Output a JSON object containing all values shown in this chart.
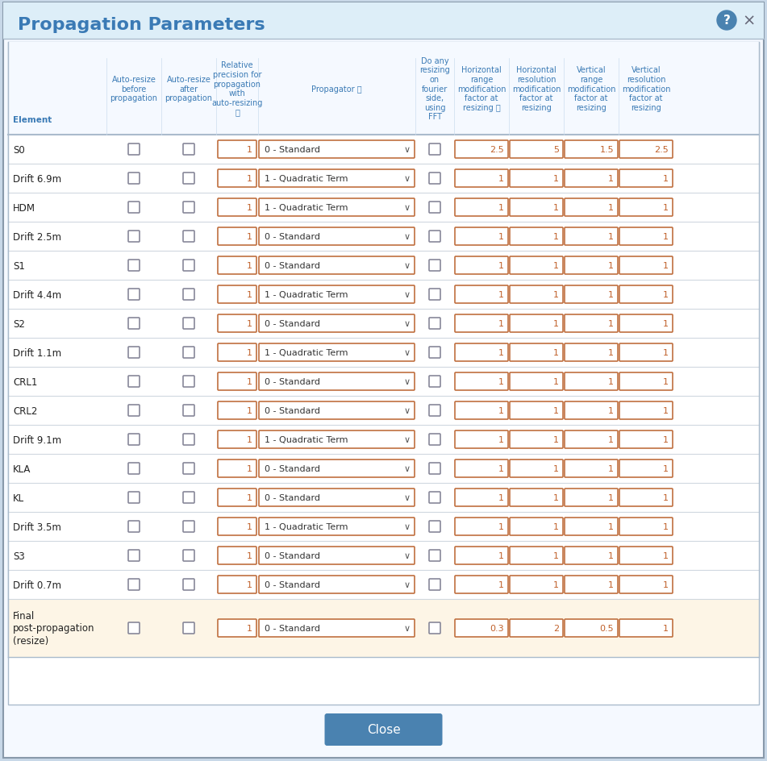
{
  "title": "Propagation Parameters",
  "bg_color": "#f0f8ff",
  "header_bg": "#ddeeff",
  "table_bg": "#ffffff",
  "last_row_bg": "#fdf5e6",
  "border_color": "#aaaaaa",
  "text_color": "#333333",
  "blue_color": "#3a7ab5",
  "orange_color": "#c0602a",
  "header_text_color": "#3a7ab5",
  "row_separator": "#cccccc",
  "input_border": "#c07040",
  "close_btn_color": "#4a82b0",
  "rows": [
    {
      "element": "S0",
      "propagator": "0 - Standard",
      "hr": 2.5,
      "hrm": 5,
      "vr": 1.5,
      "vrm": 2.5
    },
    {
      "element": "Drift 6.9m",
      "propagator": "1 - Quadratic Term",
      "hr": 1,
      "hrm": 1,
      "vr": 1,
      "vrm": 1
    },
    {
      "element": "HDM",
      "propagator": "1 - Quadratic Term",
      "hr": 1,
      "hrm": 1,
      "vr": 1,
      "vrm": 1
    },
    {
      "element": "Drift 2.5m",
      "propagator": "0 - Standard",
      "hr": 1,
      "hrm": 1,
      "vr": 1,
      "vrm": 1
    },
    {
      "element": "S1",
      "propagator": "0 - Standard",
      "hr": 1,
      "hrm": 1,
      "vr": 1,
      "vrm": 1
    },
    {
      "element": "Drift 4.4m",
      "propagator": "1 - Quadratic Term",
      "hr": 1,
      "hrm": 1,
      "vr": 1,
      "vrm": 1
    },
    {
      "element": "S2",
      "propagator": "0 - Standard",
      "hr": 1,
      "hrm": 1,
      "vr": 1,
      "vrm": 1
    },
    {
      "element": "Drift 1.1m",
      "propagator": "1 - Quadratic Term",
      "hr": 1,
      "hrm": 1,
      "vr": 1,
      "vrm": 1
    },
    {
      "element": "CRL1",
      "propagator": "0 - Standard",
      "hr": 1,
      "hrm": 1,
      "vr": 1,
      "vrm": 1
    },
    {
      "element": "CRL2",
      "propagator": "0 - Standard",
      "hr": 1,
      "hrm": 1,
      "vr": 1,
      "vrm": 1
    },
    {
      "element": "Drift 9.1m",
      "propagator": "1 - Quadratic Term",
      "hr": 1,
      "hrm": 1,
      "vr": 1,
      "vrm": 1
    },
    {
      "element": "KLA",
      "propagator": "0 - Standard",
      "hr": 1,
      "hrm": 1,
      "vr": 1,
      "vrm": 1
    },
    {
      "element": "KL",
      "propagator": "0 - Standard",
      "hr": 1,
      "hrm": 1,
      "vr": 1,
      "vrm": 1
    },
    {
      "element": "Drift 3.5m",
      "propagator": "1 - Quadratic Term",
      "hr": 1,
      "hrm": 1,
      "vr": 1,
      "vrm": 1
    },
    {
      "element": "S3",
      "propagator": "0 - Standard",
      "hr": 1,
      "hrm": 1,
      "vr": 1,
      "vrm": 1
    },
    {
      "element": "Drift 0.7m",
      "propagator": "0 - Standard",
      "hr": 1,
      "hrm": 1,
      "vr": 1,
      "vrm": 1
    },
    {
      "element": "Final\npost-propagation\n(resize)",
      "propagator": "0 - Standard",
      "hr": 0.3,
      "hrm": 2,
      "vr": 0.5,
      "vrm": 1
    }
  ],
  "col_headers": [
    "Element",
    "Auto-resize\nbefore\npropagation",
    "Auto-resize\nafter\npropagation",
    "Relative\nprecision for\npropagation\nwith\nauto-resizing\nⓘ",
    "Propagator ⓘ",
    "Do any\nresizing\non\nfourier\nside,\nusing\nFFT",
    "Horizontal\nrange\nmodification\nfactor at\nresizing ⓘ",
    "Horizontal\nresolution\nmodification\nfactor at\nresizing",
    "Vertical\nrange\nmodification\nfactor at\nresizing",
    "Vertical\nresolution\nmodification\nfactor at\nresizing"
  ]
}
